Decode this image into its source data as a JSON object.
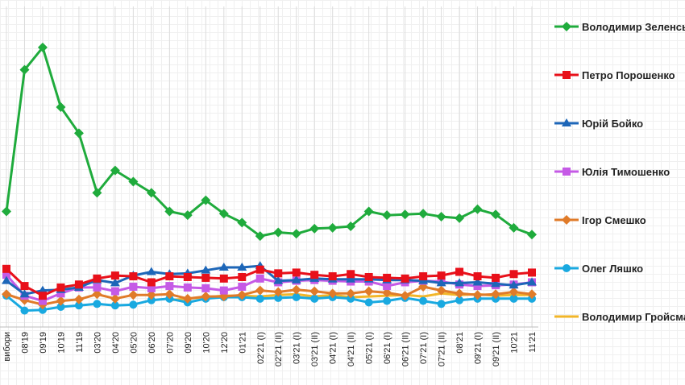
{
  "chart_data": {
    "type": "line",
    "title": "",
    "xlabel": "",
    "ylabel": "",
    "ylim": [
      0,
      43
    ],
    "grid": "vertical",
    "legend_position": "right",
    "categories": [
      "вибори",
      "08'19",
      "09'19",
      "10'19",
      "11'19",
      "03'20",
      "04'20",
      "05'20",
      "06'20",
      "07'20",
      "09'20",
      "10'20",
      "12'20",
      "01'21",
      "02'21 (I)",
      "02'21 (II)",
      "03'21 (I)",
      "03'21 (II)",
      "04'21 (I)",
      "04'21 (II)",
      "05'21 (I)",
      "06'21 (I)",
      "06'21 (II)",
      "07'21 (I)",
      "07'21 (II)",
      "08'21",
      "09'21 (I)",
      "09'21 (II)",
      "10'21",
      "11'21"
    ],
    "series": [
      {
        "name": "Володимир Зеленський",
        "color": "#1fab3c",
        "marker": "diamond",
        "values": [
          15.5,
          34.5,
          37.5,
          29.5,
          26,
          18,
          21,
          19.5,
          18,
          15.5,
          15,
          17,
          15.2,
          14,
          12.2,
          12.7,
          12.5,
          13.2,
          13.3,
          13.5,
          15.5,
          15,
          15.1,
          15.2,
          14.8,
          14.6,
          15.8,
          15.1,
          13.3,
          12.4
        ]
      },
      {
        "name": "Петро Порошенко",
        "color": "#e8101a",
        "marker": "square",
        "values": [
          7.8,
          5.5,
          4.2,
          5.3,
          5.7,
          6.5,
          6.9,
          6.8,
          6,
          6.8,
          6.7,
          6.6,
          6.5,
          6.7,
          7.7,
          7.2,
          7.3,
          7,
          6.8,
          7.1,
          6.7,
          6.6,
          6.5,
          6.8,
          6.9,
          7.4,
          6.8,
          6.6,
          7.1,
          7.3
        ]
      },
      {
        "name": "Юрій Бойко",
        "color": "#1d66b8",
        "marker": "triangle",
        "values": [
          6.2,
          4.4,
          4.9,
          5,
          5.3,
          6.3,
          5.9,
          6.9,
          7.4,
          7.1,
          7.2,
          7.6,
          8,
          8,
          8.2,
          6.2,
          6.3,
          6.5,
          6.4,
          6.4,
          6.4,
          6.3,
          6.3,
          6.2,
          5.9,
          5.9,
          6,
          5.8,
          5.6,
          6
        ]
      },
      {
        "name": "Юлія Тимошенко",
        "color": "#c55ae6",
        "marker": "square",
        "values": [
          7,
          4.2,
          3.5,
          4.5,
          5.3,
          5.3,
          4.8,
          5.4,
          5.2,
          5.5,
          5.3,
          5.2,
          4.9,
          5.4,
          6.5,
          6,
          6.2,
          6.3,
          6.2,
          6.1,
          6.1,
          5.5,
          6,
          6.2,
          6.1,
          5.7,
          5.5,
          5.6,
          5.7,
          6
        ]
      },
      {
        "name": "Ігор Смешко",
        "color": "#e07b29",
        "marker": "diamond",
        "values": [
          4.4,
          3.6,
          3,
          3.5,
          3.7,
          4.4,
          3.8,
          4.3,
          4.3,
          4.4,
          3.8,
          4.1,
          4.1,
          4.3,
          4.9,
          4.7,
          5,
          4.8,
          4.5,
          4.5,
          4.8,
          4.6,
          4.2,
          5.4,
          4.9,
          4.5,
          4.3,
          4.4,
          4.7,
          4.4
        ]
      },
      {
        "name": "Олег Ляшко",
        "color": "#19a9e0",
        "marker": "circle",
        "values": [
          4.2,
          2.2,
          2.3,
          2.7,
          2.9,
          3.1,
          2.9,
          3,
          3.6,
          3.8,
          3.3,
          3.8,
          4,
          4,
          3.8,
          3.9,
          4,
          3.8,
          4,
          3.8,
          3.3,
          3.5,
          3.9,
          3.5,
          3.1,
          3.6,
          3.8,
          3.8,
          3.8,
          3.8
        ]
      },
      {
        "name": "Володимир Гройсман",
        "color": "#f2b629",
        "marker": "none",
        "values": [
          null,
          null,
          null,
          null,
          null,
          null,
          null,
          null,
          null,
          3.6,
          3.8,
          4,
          4.2,
          4.2,
          4.1,
          4.3,
          4.4,
          4.1,
          4.3,
          4,
          4.1,
          4.2,
          4.3,
          4.1,
          4.5,
          4.3,
          4.4,
          4.2,
          4.3,
          4.3
        ]
      }
    ]
  }
}
